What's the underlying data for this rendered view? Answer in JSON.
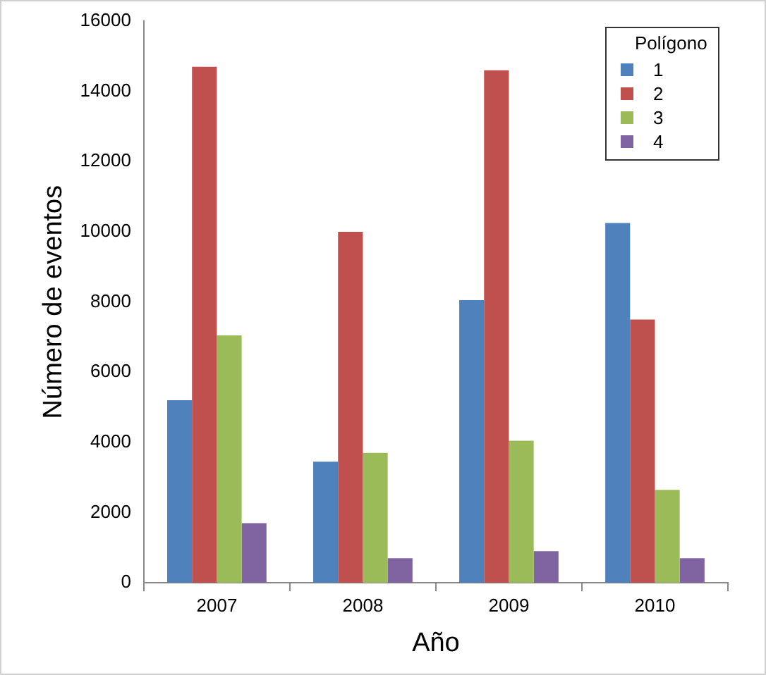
{
  "chart_data": {
    "type": "bar",
    "xlabel": "Año",
    "ylabel": "Número de eventos",
    "legend_title": "Polígono",
    "legend": "top right",
    "grid": false,
    "categories": [
      "2007",
      "2008",
      "2009",
      "2010"
    ],
    "ylim": [
      0,
      16000
    ],
    "yticks": [
      0,
      2000,
      4000,
      6000,
      8000,
      10000,
      12000,
      14000,
      16000
    ],
    "series": [
      {
        "name": "1",
        "color": "#4f81bd",
        "values": [
          5200,
          3450,
          8050,
          10250
        ]
      },
      {
        "name": "2",
        "color": "#c0504d",
        "values": [
          14700,
          10000,
          14600,
          7500
        ]
      },
      {
        "name": "3",
        "color": "#9bbb59",
        "values": [
          7050,
          3700,
          4050,
          2650
        ]
      },
      {
        "name": "4",
        "color": "#8064a2",
        "values": [
          1700,
          700,
          900,
          700
        ]
      }
    ]
  }
}
